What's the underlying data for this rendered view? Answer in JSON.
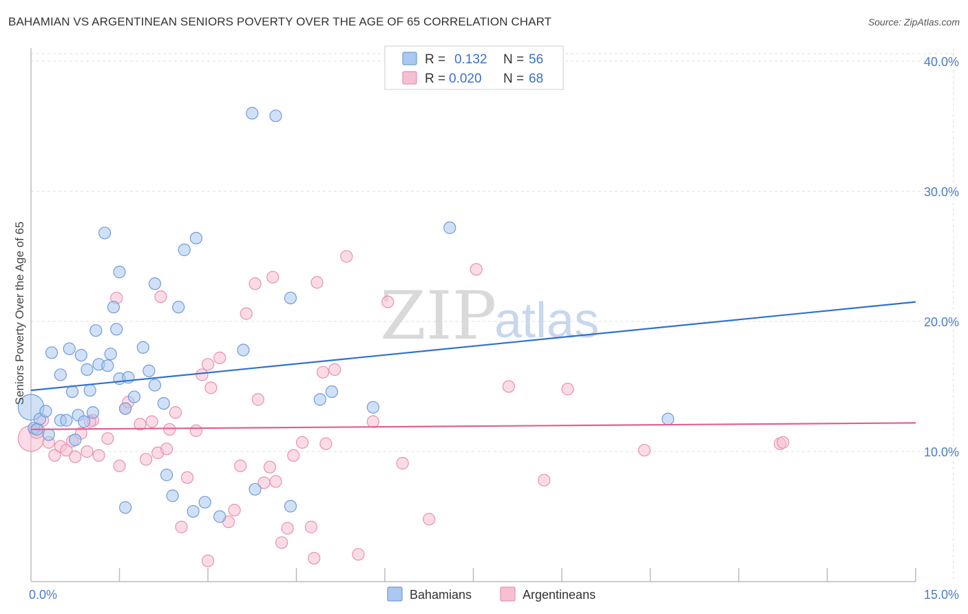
{
  "title": "BAHAMIAN VS ARGENTINEAN SENIORS POVERTY OVER THE AGE OF 65 CORRELATION CHART",
  "source": "Source: ZipAtlas.com",
  "watermark": {
    "zip": "ZIP",
    "atlas": "atlas"
  },
  "colors": {
    "bahamians_fill": "#aac8f0",
    "bahamians_stroke": "#6f9bd8",
    "bahamians_line": "#3070d0",
    "argentineans_fill": "#f7bfd2",
    "argentineans_stroke": "#e890ae",
    "argentineans_line": "#e06090",
    "grid": "#dddddd",
    "axis_text": "#4a7cc9"
  },
  "legend": {
    "rows": [
      {
        "r_label": "R =",
        "r_value": "0.132",
        "n_label": "N =",
        "n_value": "56"
      },
      {
        "r_label": "R =",
        "r_value": "0.020",
        "n_label": "N =",
        "n_value": "68"
      }
    ]
  },
  "chart_data": {
    "type": "scatter",
    "title": "BAHAMIAN VS ARGENTINEAN SENIORS POVERTY OVER THE AGE OF 65 CORRELATION CHART",
    "xlabel": "",
    "ylabel": "Seniors Poverty Over the Age of 65",
    "xlim": [
      0,
      15
    ],
    "ylim": [
      0,
      41
    ],
    "x_tick_labels": [
      "0.0%",
      "15.0%"
    ],
    "y_ticks": [
      10,
      20,
      30,
      40
    ],
    "y_tick_labels": [
      "10.0%",
      "20.0%",
      "30.0%",
      "40.0%"
    ],
    "grid": true,
    "legend_position": "top-center",
    "series": [
      {
        "name": "Bahamians",
        "r": 0.132,
        "n": 56,
        "trend": {
          "x0": 0,
          "y0": 14.7,
          "x1": 15,
          "y1": 21.5
        },
        "points": [
          [
            0.0,
            13.4,
            2.2
          ],
          [
            0.05,
            11.8,
            1
          ],
          [
            0.15,
            12.5,
            1
          ],
          [
            0.1,
            11.7,
            1
          ],
          [
            0.25,
            13.1,
            1
          ],
          [
            0.3,
            11.3,
            1
          ],
          [
            0.5,
            12.4,
            1
          ],
          [
            0.6,
            12.4,
            1
          ],
          [
            0.8,
            12.8,
            1
          ],
          [
            0.9,
            12.3,
            1
          ],
          [
            0.75,
            10.9,
            1
          ],
          [
            1.05,
            13.0,
            1
          ],
          [
            0.35,
            17.6,
            1
          ],
          [
            0.5,
            15.9,
            1
          ],
          [
            0.65,
            17.9,
            1
          ],
          [
            0.85,
            17.4,
            1
          ],
          [
            0.7,
            14.6,
            1
          ],
          [
            1.0,
            14.7,
            1
          ],
          [
            1.15,
            16.7,
            1
          ],
          [
            1.3,
            16.6,
            1
          ],
          [
            1.35,
            17.5,
            1
          ],
          [
            1.5,
            15.6,
            1
          ],
          [
            1.65,
            15.7,
            1
          ],
          [
            1.75,
            14.2,
            1
          ],
          [
            1.9,
            18.0,
            1
          ],
          [
            2.0,
            16.2,
            1
          ],
          [
            2.1,
            15.1,
            1
          ],
          [
            2.25,
            13.7,
            1
          ],
          [
            1.1,
            19.3,
            1
          ],
          [
            1.4,
            21.1,
            1
          ],
          [
            1.45,
            19.4,
            1
          ],
          [
            1.5,
            23.8,
            1
          ],
          [
            1.25,
            26.8,
            1
          ],
          [
            2.1,
            22.9,
            1
          ],
          [
            2.5,
            21.1,
            1
          ],
          [
            2.6,
            25.5,
            1
          ],
          [
            2.8,
            26.4,
            1
          ],
          [
            2.3,
            8.2,
            1
          ],
          [
            2.4,
            6.6,
            1
          ],
          [
            2.75,
            5.4,
            1
          ],
          [
            2.95,
            6.1,
            1
          ],
          [
            3.2,
            5.0,
            1
          ],
          [
            1.6,
            5.7,
            1
          ],
          [
            3.8,
            7.1,
            1
          ],
          [
            4.4,
            5.8,
            1
          ],
          [
            3.6,
            17.8,
            1
          ],
          [
            4.4,
            21.8,
            1
          ],
          [
            4.9,
            14.0,
            1
          ],
          [
            5.1,
            14.6,
            1
          ],
          [
            5.8,
            13.4,
            1
          ],
          [
            3.75,
            36.0,
            1
          ],
          [
            4.15,
            35.8,
            1
          ],
          [
            7.1,
            27.2,
            1
          ],
          [
            10.8,
            12.5,
            1
          ],
          [
            0.95,
            16.3,
            1
          ],
          [
            1.6,
            13.3,
            1
          ]
        ]
      },
      {
        "name": "Argentineans",
        "r": 0.02,
        "n": 68,
        "trend": {
          "x0": 0,
          "y0": 11.7,
          "x1": 15,
          "y1": 12.2
        },
        "points": [
          [
            0.0,
            11.0,
            2.2
          ],
          [
            0.1,
            11.6,
            1.3
          ],
          [
            0.2,
            12.4,
            1
          ],
          [
            0.3,
            10.7,
            1
          ],
          [
            0.4,
            9.7,
            1
          ],
          [
            0.5,
            10.4,
            1
          ],
          [
            0.6,
            10.1,
            1
          ],
          [
            0.7,
            10.8,
            1
          ],
          [
            0.85,
            11.4,
            1
          ],
          [
            0.95,
            10.0,
            1
          ],
          [
            1.05,
            12.4,
            1
          ],
          [
            1.15,
            9.7,
            1
          ],
          [
            1.3,
            11.0,
            1
          ],
          [
            1.5,
            8.9,
            1
          ],
          [
            1.6,
            13.3,
            1
          ],
          [
            1.65,
            13.8,
            1
          ],
          [
            1.85,
            12.1,
            1
          ],
          [
            1.95,
            9.4,
            1
          ],
          [
            2.05,
            12.3,
            1
          ],
          [
            2.15,
            9.9,
            1
          ],
          [
            2.3,
            10.2,
            1
          ],
          [
            2.35,
            11.7,
            1
          ],
          [
            2.45,
            13.0,
            1
          ],
          [
            2.55,
            4.2,
            1
          ],
          [
            2.65,
            8.0,
            1
          ],
          [
            2.8,
            11.6,
            1
          ],
          [
            2.9,
            15.9,
            1
          ],
          [
            3.0,
            16.7,
            1
          ],
          [
            3.05,
            14.9,
            1
          ],
          [
            3.2,
            17.2,
            1
          ],
          [
            3.35,
            4.6,
            1
          ],
          [
            3.45,
            5.5,
            1
          ],
          [
            3.55,
            8.9,
            1
          ],
          [
            3.65,
            20.6,
            1
          ],
          [
            3.85,
            14.0,
            1
          ],
          [
            3.95,
            7.6,
            1
          ],
          [
            4.05,
            8.8,
            1
          ],
          [
            4.15,
            7.7,
            1
          ],
          [
            4.25,
            3.0,
            1
          ],
          [
            4.35,
            4.1,
            1
          ],
          [
            4.45,
            9.7,
            1
          ],
          [
            4.6,
            10.7,
            1
          ],
          [
            4.75,
            4.2,
            1
          ],
          [
            4.85,
            23.0,
            1
          ],
          [
            5.0,
            10.6,
            1
          ],
          [
            5.15,
            16.3,
            1
          ],
          [
            5.35,
            25.0,
            1
          ],
          [
            5.55,
            2.1,
            1
          ],
          [
            5.8,
            12.3,
            1
          ],
          [
            6.05,
            21.5,
            1
          ],
          [
            6.3,
            9.1,
            1
          ],
          [
            6.75,
            4.8,
            1
          ],
          [
            7.55,
            24.0,
            1
          ],
          [
            8.1,
            15.0,
            1
          ],
          [
            8.7,
            7.8,
            1
          ],
          [
            9.1,
            14.8,
            1
          ],
          [
            10.4,
            10.1,
            1
          ],
          [
            12.7,
            10.6,
            1
          ],
          [
            12.75,
            10.7,
            1
          ],
          [
            4.8,
            1.8,
            1
          ],
          [
            3.0,
            1.6,
            1
          ],
          [
            2.2,
            21.9,
            1
          ],
          [
            1.45,
            21.8,
            1
          ],
          [
            4.1,
            23.4,
            1
          ],
          [
            3.8,
            22.9,
            1
          ],
          [
            4.95,
            16.1,
            1
          ],
          [
            1.0,
            12.3,
            1
          ],
          [
            0.75,
            9.6,
            1
          ]
        ]
      }
    ]
  },
  "bottom_legend": [
    "Bahamians",
    "Argentineans"
  ]
}
